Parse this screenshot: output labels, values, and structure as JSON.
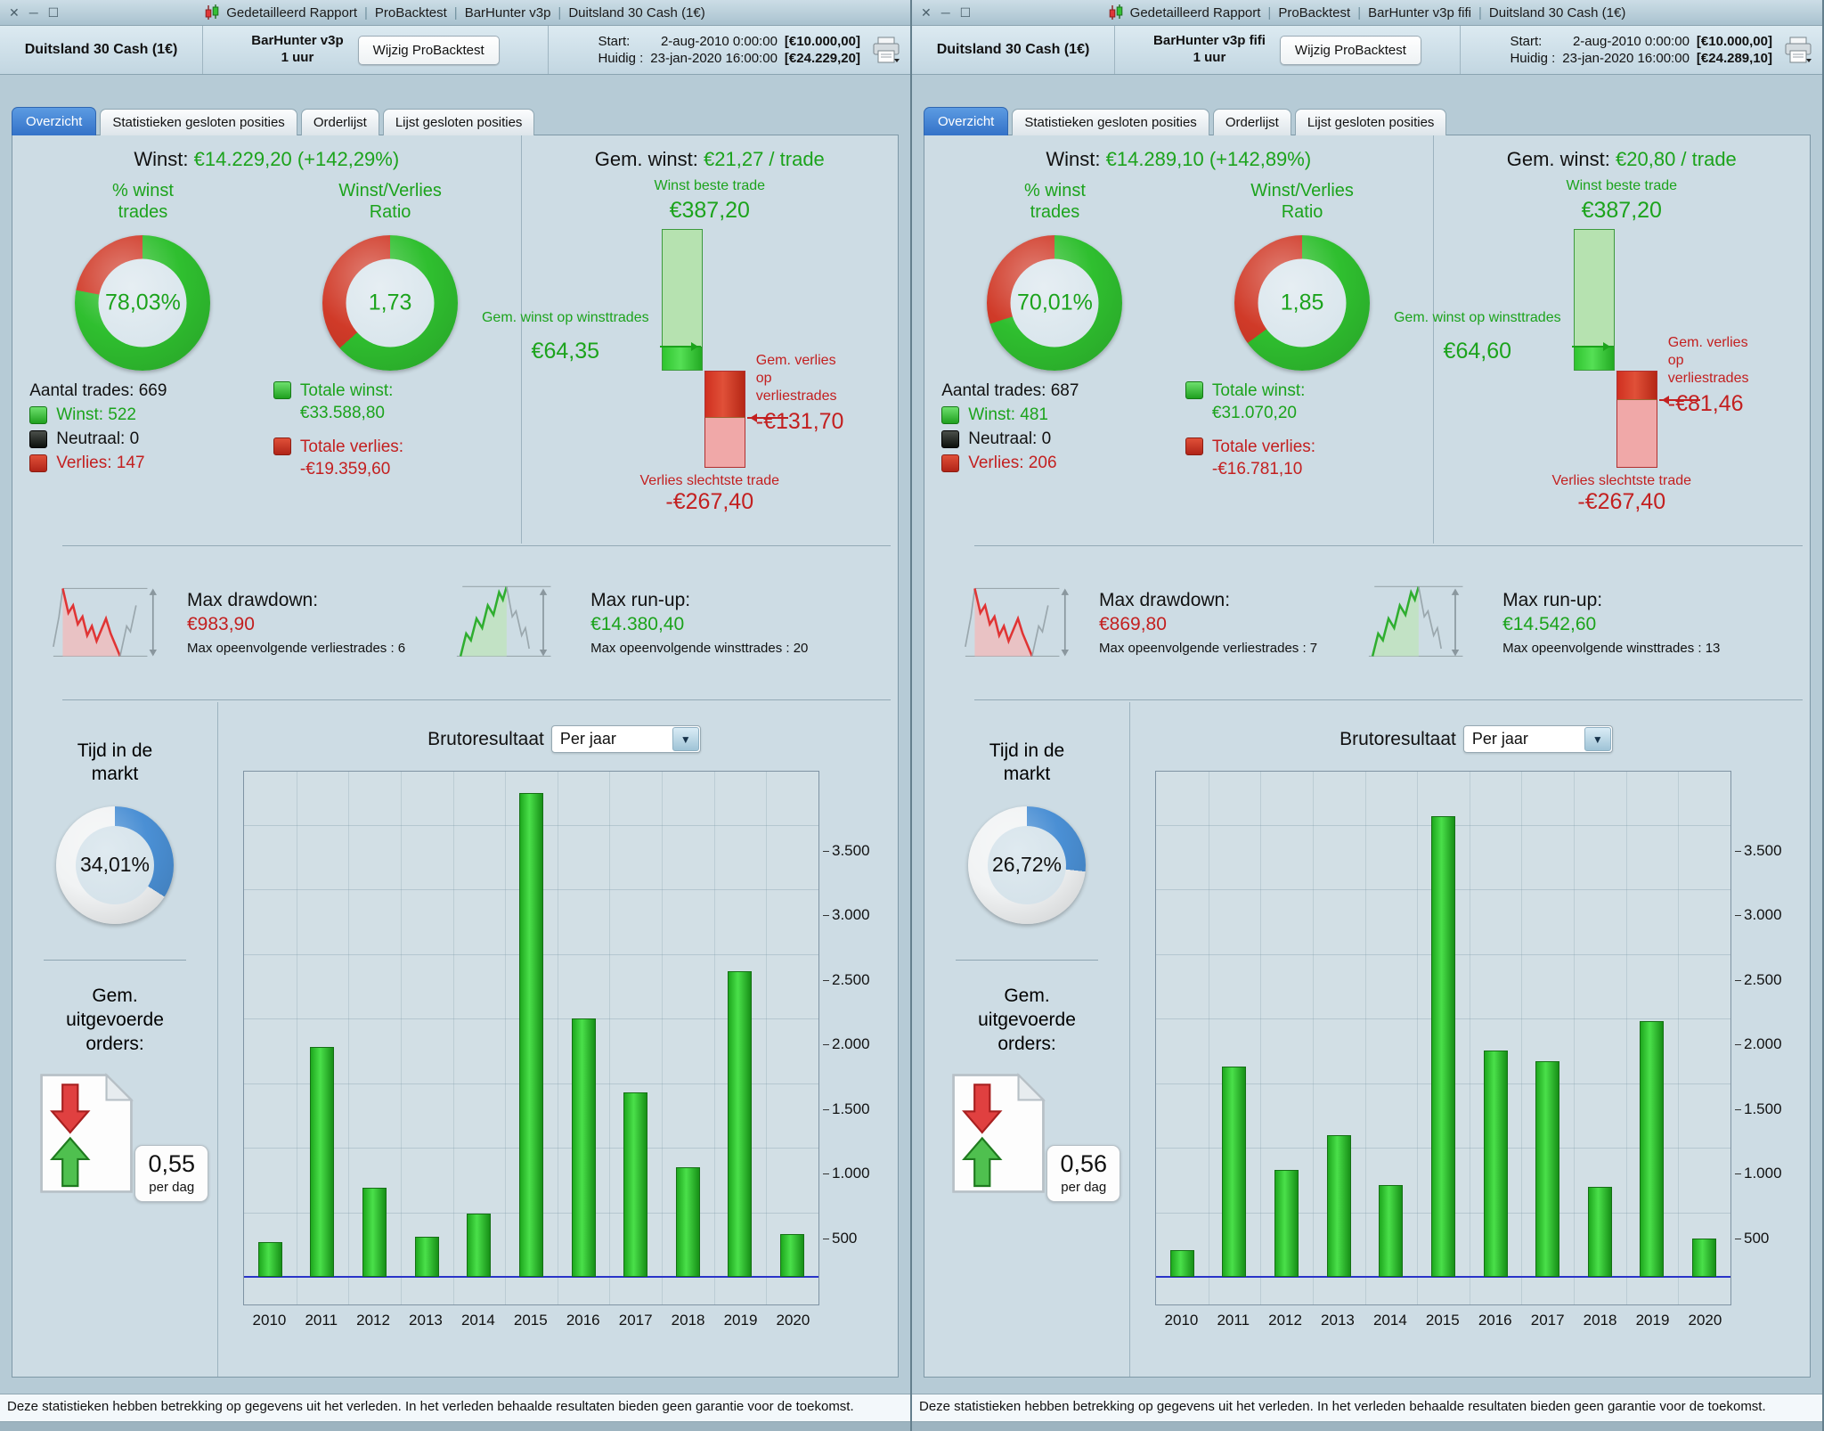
{
  "colors": {
    "profit_green": "#1ca31c",
    "loss_red": "#c32020",
    "donut_green": "#2fbf2f",
    "donut_red": "#d03a28",
    "time_blue": "#4a8fd4",
    "time_rest": "#f1f3f4",
    "tab_active_blue": "#3b7fd0"
  },
  "footer": {
    "text": "Deze statistieken hebben betrekking op gegevens uit het verleden. In het verleden behaalde resultaten bieden geen garantie voor de toekomst."
  },
  "windows": [
    {
      "title_bar": {
        "controls": {
          "close": "✕",
          "minimize": "─",
          "maximize": "☐"
        },
        "separator": "|",
        "app_segments": [
          "Gedetailleerd Rapport",
          "ProBacktest",
          "BarHunter v3p",
          "Duitsland 30 Cash (1€)"
        ]
      },
      "header": {
        "instrument": "Duitsland 30 Cash (1€)",
        "strategy": "BarHunter v3p",
        "timeframe": "1 uur",
        "edit_button": "Wijzig ProBacktest",
        "start_label": "Start:",
        "start_datetime": "2-aug-2010 0:00:00",
        "start_capital": "[€10.000,00]",
        "current_label": "Huidig :",
        "current_datetime": "23-jan-2020 16:00:00",
        "current_capital": "[€24.229,20]"
      },
      "tabs": [
        "Overzicht",
        "Statistieken gesloten posities",
        "Orderlijst",
        "Lijst gesloten posities"
      ],
      "overview": {
        "profit_label": "Winst:",
        "profit_value": "€14.229,20 (+142,29%)",
        "pct_win_title_1": "% winst",
        "pct_win_title_2": "trades",
        "pct_win_value": "78,03%",
        "pct_win_percent": 78.03,
        "ratio_title_1": "Winst/Verlies",
        "ratio_title_2": "Ratio",
        "ratio_value": "1,73",
        "ratio_number": 1.73,
        "trades_total": "Aantal trades: 669",
        "legend_win": "Winst: 522",
        "legend_neutral": "Neutraal: 0",
        "legend_loss": "Verlies: 147",
        "total_win_label": "Totale winst:",
        "total_win_value": "€33.588,80",
        "total_loss_label": "Totale verlies:",
        "total_loss_value": "-€19.359,60",
        "avg_profit_label": "Gem. winst:",
        "avg_profit_value": "€21,27 / trade",
        "best_trade": {
          "best_label": "Winst beste trade",
          "best_value": "€387,20",
          "best": 387.2,
          "avg_win_label": "Gem. winst op winsttrades",
          "avg_win_value": "€64,35",
          "avg_win": 64.35,
          "avg_loss_label_1": "Gem. verlies",
          "avg_loss_label_2": "op",
          "avg_loss_label_3": "verliestrades",
          "avg_loss_value": "-€131,70",
          "avg_loss": 131.7,
          "worst_label": "Verlies slechtste trade",
          "worst_value": "-€267,40",
          "worst": 267.4
        }
      },
      "risk": {
        "drawdown_label": "Max drawdown:",
        "drawdown_value": "€983,90",
        "drawdown_note": "Max opeenvolgende verliestrades : 6",
        "runup_label": "Max run-up:",
        "runup_value": "€14.380,40",
        "runup_note": "Max opeenvolgende winsttrades : 20"
      },
      "bottom": {
        "time_title_1": "Tijd in de",
        "time_title_2": "markt",
        "time_value": "34,01%",
        "time_percent": 34.01,
        "orders_title": "Gem. uitgevoerde orders:",
        "orders_value": "0,55",
        "orders_unit": "per dag"
      }
    },
    {
      "title_bar": {
        "controls": {
          "close": "✕",
          "minimize": "─",
          "maximize": "☐"
        },
        "separator": "|",
        "app_segments": [
          "Gedetailleerd Rapport",
          "ProBacktest",
          "BarHunter v3p fifi",
          "Duitsland 30 Cash (1€)"
        ]
      },
      "header": {
        "instrument": "Duitsland 30 Cash (1€)",
        "strategy": "BarHunter v3p fifi",
        "timeframe": "1 uur",
        "edit_button": "Wijzig ProBacktest",
        "start_label": "Start:",
        "start_datetime": "2-aug-2010 0:00:00",
        "start_capital": "[€10.000,00]",
        "current_label": "Huidig :",
        "current_datetime": "23-jan-2020 16:00:00",
        "current_capital": "[€24.289,10]"
      },
      "tabs": [
        "Overzicht",
        "Statistieken gesloten posities",
        "Orderlijst",
        "Lijst gesloten posities"
      ],
      "overview": {
        "profit_label": "Winst:",
        "profit_value": "€14.289,10 (+142,89%)",
        "pct_win_title_1": "% winst",
        "pct_win_title_2": "trades",
        "pct_win_value": "70,01%",
        "pct_win_percent": 70.01,
        "ratio_title_1": "Winst/Verlies",
        "ratio_title_2": "Ratio",
        "ratio_value": "1,85",
        "ratio_number": 1.85,
        "trades_total": "Aantal trades: 687",
        "legend_win": "Winst: 481",
        "legend_neutral": "Neutraal: 0",
        "legend_loss": "Verlies: 206",
        "total_win_label": "Totale winst:",
        "total_win_value": "€31.070,20",
        "total_loss_label": "Totale verlies:",
        "total_loss_value": "-€16.781,10",
        "avg_profit_label": "Gem. winst:",
        "avg_profit_value": "€20,80 / trade",
        "best_trade": {
          "best_label": "Winst beste trade",
          "best_value": "€387,20",
          "best": 387.2,
          "avg_win_label": "Gem. winst op winsttrades",
          "avg_win_value": "€64,60",
          "avg_win": 64.6,
          "avg_loss_label_1": "Gem. verlies",
          "avg_loss_label_2": "op",
          "avg_loss_label_3": "verliestrades",
          "avg_loss_value": "-€81,46",
          "avg_loss": 81.46,
          "worst_label": "Verlies slechtste trade",
          "worst_value": "-€267,40",
          "worst": 267.4
        }
      },
      "risk": {
        "drawdown_label": "Max drawdown:",
        "drawdown_value": "€869,80",
        "drawdown_note": "Max opeenvolgende verliestrades : 7",
        "runup_label": "Max run-up:",
        "runup_value": "€14.542,60",
        "runup_note": "Max opeenvolgende winsttrades : 13"
      },
      "bottom": {
        "time_title_1": "Tijd in de",
        "time_title_2": "markt",
        "time_value": "26,72%",
        "time_percent": 26.72,
        "orders_title": "Gem. uitgevoerde orders:",
        "orders_value": "0,56",
        "orders_unit": "per dag"
      }
    }
  ],
  "chart_data": [
    {
      "type": "bar",
      "title": "Brutoresultaat",
      "period_selected": "Per jaar",
      "categories": [
        "2010",
        "2011",
        "2012",
        "2013",
        "2014",
        "2015",
        "2016",
        "2017",
        "2018",
        "2019",
        "2020"
      ],
      "values": [
        270,
        1780,
        690,
        310,
        490,
        3750,
        2000,
        1430,
        850,
        2370,
        330
      ],
      "y_ticks": [
        500,
        1000,
        1500,
        2000,
        2500,
        3000,
        3500
      ],
      "y_tick_labels": [
        "500",
        "1.000",
        "1.500",
        "2.000",
        "2.500",
        "3.000",
        "3.500"
      ],
      "ylim": [
        0,
        3850
      ],
      "grid": true,
      "legend_position": "none",
      "bar_color": "#2ebf2e",
      "baseline_color": "#2a35c8"
    },
    {
      "type": "bar",
      "title": "Brutoresultaat",
      "period_selected": "Per jaar",
      "categories": [
        "2010",
        "2011",
        "2012",
        "2013",
        "2014",
        "2015",
        "2016",
        "2017",
        "2018",
        "2019",
        "2020"
      ],
      "values": [
        210,
        1630,
        830,
        1100,
        710,
        3570,
        1750,
        1670,
        700,
        1980,
        300
      ],
      "y_ticks": [
        500,
        1000,
        1500,
        2000,
        2500,
        3000,
        3500
      ],
      "y_tick_labels": [
        "500",
        "1.000",
        "1.500",
        "2.000",
        "2.500",
        "3.000",
        "3.500"
      ],
      "ylim": [
        0,
        3850
      ],
      "grid": true,
      "legend_position": "none",
      "bar_color": "#2ebf2e",
      "baseline_color": "#2a35c8"
    }
  ]
}
